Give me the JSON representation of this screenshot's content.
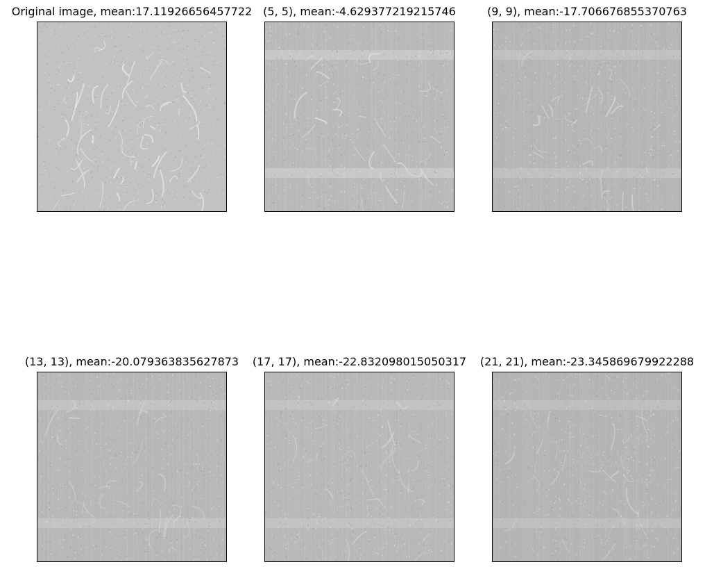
{
  "figure": {
    "panels": [
      {
        "title": "Original image, mean:17.11926656457722",
        "tone": "#c2c2c2",
        "edge": "#f0f0f0"
      },
      {
        "title": "(5, 5), mean:-4.629377219215746",
        "tone": "#bababa",
        "edge": "#e2e2e2"
      },
      {
        "title": "(9, 9), mean:-17.706676855370763",
        "tone": "#b6b6b6",
        "edge": "#d8d8d8"
      },
      {
        "title": "(13, 13), mean:-20.079363835627873",
        "tone": "#b8b8b8",
        "edge": "#d6d6d6"
      },
      {
        "title": "(17, 17), mean:-22.832098015050317",
        "tone": "#b9b9b9",
        "edge": "#d4d4d4"
      },
      {
        "title": "(21, 21), mean:-23.345869679922288",
        "tone": "#b5b5b5",
        "edge": "#d0d0d0"
      }
    ]
  }
}
